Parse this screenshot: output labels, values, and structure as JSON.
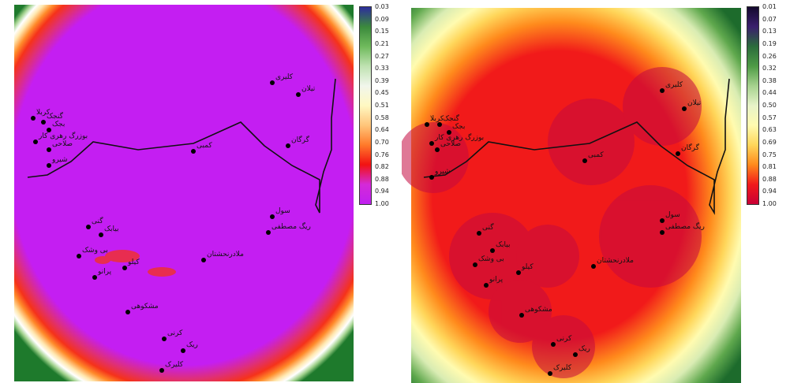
{
  "maps": [
    {
      "id": "left",
      "palette": "magenta",
      "legend": [
        "0.03",
        "0.09",
        "0.15",
        "0.21",
        "0.27",
        "0.33",
        "0.39",
        "0.45",
        "0.51",
        "0.58",
        "0.64",
        "0.70",
        "0.76",
        "0.82",
        "0.88",
        "0.94",
        "1.00"
      ],
      "legend_colors": [
        "#2d2e9c",
        "#3b8a3c",
        "#6fba5c",
        "#bfe2b1",
        "#f1f6ec",
        "#fff8c2",
        "#ffc57a",
        "#ff7a2a",
        "#f21212",
        "#d42ad8",
        "#c020f0"
      ]
    },
    {
      "id": "right",
      "palette": "red",
      "legend": [
        "0.01",
        "0.07",
        "0.13",
        "0.19",
        "0.26",
        "0.32",
        "0.38",
        "0.44",
        "0.50",
        "0.57",
        "0.63",
        "0.69",
        "0.75",
        "0.81",
        "0.88",
        "0.94",
        "1.00"
      ],
      "legend_colors": [
        "#14092e",
        "#3a1f6d",
        "#2b6c3c",
        "#4e9b45",
        "#a6d28e",
        "#e7f3c9",
        "#fffbb0",
        "#ffd65a",
        "#ff8a1c",
        "#f11a1a",
        "#c90036"
      ]
    }
  ],
  "places": [
    {
      "name": "کربلا"
    },
    {
      "name": "گنجک"
    },
    {
      "name": "بجک"
    },
    {
      "name": "کلیری"
    },
    {
      "name": "تیلان"
    },
    {
      "name": "گرگان"
    },
    {
      "name": "صلاحی"
    },
    {
      "name": "بوزرگ رهری کار"
    },
    {
      "name": "شیرو"
    },
    {
      "name": "کمبی"
    },
    {
      "name": "سول"
    },
    {
      "name": "ریگ مصطفی"
    },
    {
      "name": "گنی"
    },
    {
      "name": "بیابک"
    },
    {
      "name": "بی وشک"
    },
    {
      "name": "پرانو"
    },
    {
      "name": "کیلو"
    },
    {
      "name": "ملادرنحشتان"
    },
    {
      "name": "مشکوهی"
    },
    {
      "name": "کرنی"
    },
    {
      "name": "ریک"
    },
    {
      "name": "کلیرک"
    }
  ]
}
